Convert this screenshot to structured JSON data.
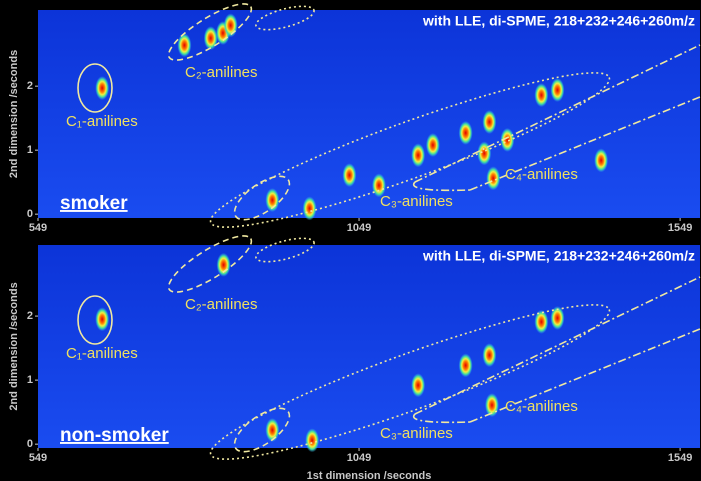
{
  "chart_data": [
    {
      "type": "scatter",
      "title": "with LLE, di-SPME, 218+232+246+260m/z",
      "group_label": "smoker",
      "y_label": "2nd dimension /seconds",
      "annotations": [
        "C₁-anilines",
        "C₂-anilines",
        "C₃-anilines",
        "C₄-anilines"
      ],
      "x": [
        649,
        777,
        818,
        837,
        849,
        914,
        972,
        1034,
        1080,
        1141,
        1164,
        1215,
        1244,
        1252,
        1258,
        1280,
        1333,
        1358,
        1426
      ],
      "values": [
        1.97,
        2.64,
        2.75,
        2.83,
        2.95,
        0.22,
        0.09,
        0.61,
        0.45,
        0.92,
        1.08,
        1.27,
        0.95,
        1.44,
        0.56,
        1.16,
        1.86,
        1.94,
        0.84
      ],
      "xlim": [
        549,
        1580
      ],
      "xticks": [
        549,
        1049,
        1549
      ],
      "ylim": [
        -0.06,
        3.19
      ],
      "yticks": [
        0,
        1,
        2
      ]
    },
    {
      "type": "scatter",
      "title": "with LLE, di-SPME, 218+232+246+260m/z",
      "group_label": "non-smoker",
      "x_label": "1st dimension /seconds",
      "y_label": "2nd dimension /seconds",
      "annotations": [
        "C₁-anilines",
        "C₂-anilines",
        "C₃-anilines",
        "C₄-anilines"
      ],
      "x": [
        649,
        838,
        914,
        976,
        1141,
        1215,
        1252,
        1256,
        1333,
        1358
      ],
      "values": [
        1.95,
        2.8,
        0.22,
        0.06,
        0.92,
        1.23,
        1.39,
        0.61,
        1.91,
        1.97
      ],
      "xlim": [
        549,
        1580
      ],
      "xticks": [
        549,
        1049,
        1549
      ],
      "ylim": [
        -0.06,
        3.11
      ],
      "yticks": [
        0,
        1,
        2
      ]
    }
  ]
}
